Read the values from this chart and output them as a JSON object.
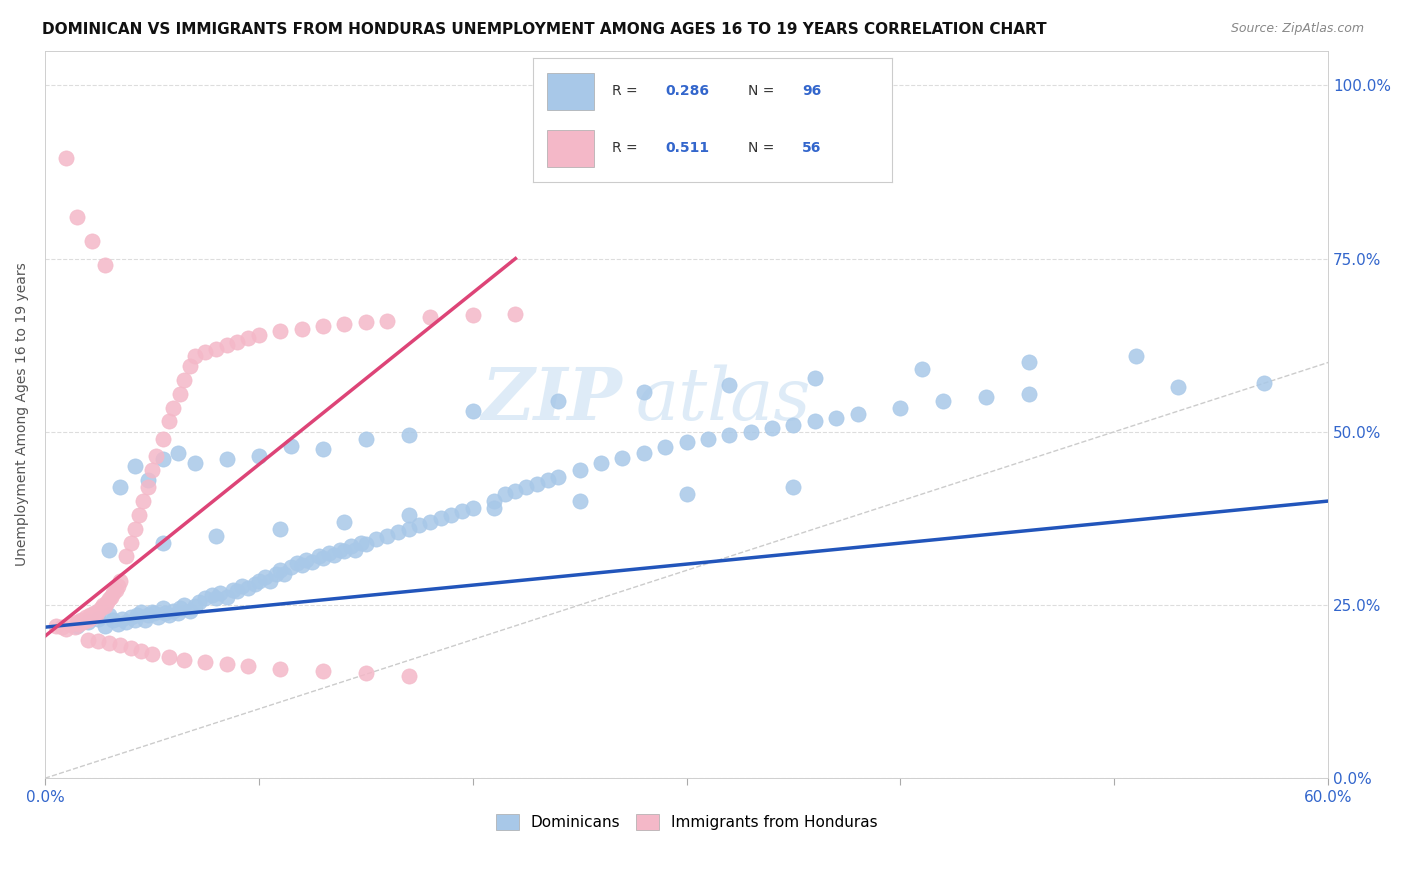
{
  "title": "DOMINICAN VS IMMIGRANTS FROM HONDURAS UNEMPLOYMENT AMONG AGES 16 TO 19 YEARS CORRELATION CHART",
  "source": "Source: ZipAtlas.com",
  "ylabel": "Unemployment Among Ages 16 to 19 years",
  "right_yticklabels": [
    "0.0%",
    "25.0%",
    "50.0%",
    "75.0%",
    "100.0%"
  ],
  "right_ytick_vals": [
    0.0,
    0.25,
    0.5,
    0.75,
    1.0
  ],
  "xmin": 0.0,
  "xmax": 0.6,
  "ymin": 0.18,
  "ymax": 1.05,
  "blue_color": "#a8c8e8",
  "pink_color": "#f4b8c8",
  "blue_line_color": "#2255bb",
  "pink_line_color": "#dd4477",
  "ref_line_color": "#cccccc",
  "legend_R_blue": "0.286",
  "legend_N_blue": "96",
  "legend_R_pink": "0.511",
  "legend_N_pink": "56",
  "legend_label_blue": "Dominicans",
  "legend_label_pink": "Immigrants from Honduras",
  "watermark_zip": "ZIP",
  "watermark_atlas": "atlas",
  "title_fontsize": 11,
  "source_fontsize": 9,
  "blue_scatter_x": [
    0.015,
    0.02,
    0.025,
    0.028,
    0.03,
    0.032,
    0.034,
    0.036,
    0.038,
    0.04,
    0.042,
    0.043,
    0.045,
    0.047,
    0.048,
    0.05,
    0.051,
    0.053,
    0.055,
    0.056,
    0.058,
    0.06,
    0.062,
    0.063,
    0.065,
    0.068,
    0.07,
    0.072,
    0.075,
    0.078,
    0.08,
    0.082,
    0.085,
    0.088,
    0.09,
    0.092,
    0.095,
    0.098,
    0.1,
    0.103,
    0.105,
    0.108,
    0.11,
    0.112,
    0.115,
    0.118,
    0.12,
    0.122,
    0.125,
    0.128,
    0.13,
    0.133,
    0.135,
    0.138,
    0.14,
    0.143,
    0.145,
    0.148,
    0.15,
    0.155,
    0.16,
    0.165,
    0.17,
    0.175,
    0.18,
    0.185,
    0.19,
    0.195,
    0.2,
    0.21,
    0.215,
    0.22,
    0.225,
    0.23,
    0.235,
    0.24,
    0.25,
    0.26,
    0.27,
    0.28,
    0.29,
    0.3,
    0.31,
    0.32,
    0.33,
    0.34,
    0.35,
    0.36,
    0.37,
    0.38,
    0.4,
    0.42,
    0.44,
    0.46,
    0.53,
    0.57
  ],
  "blue_scatter_y": [
    0.22,
    0.225,
    0.23,
    0.22,
    0.235,
    0.228,
    0.222,
    0.23,
    0.225,
    0.232,
    0.228,
    0.235,
    0.24,
    0.228,
    0.235,
    0.24,
    0.238,
    0.232,
    0.245,
    0.238,
    0.235,
    0.242,
    0.238,
    0.245,
    0.25,
    0.242,
    0.248,
    0.255,
    0.26,
    0.265,
    0.26,
    0.268,
    0.262,
    0.272,
    0.27,
    0.278,
    0.275,
    0.28,
    0.285,
    0.29,
    0.285,
    0.295,
    0.3,
    0.295,
    0.305,
    0.31,
    0.308,
    0.315,
    0.312,
    0.32,
    0.318,
    0.325,
    0.322,
    0.33,
    0.328,
    0.335,
    0.33,
    0.34,
    0.338,
    0.345,
    0.35,
    0.355,
    0.36,
    0.365,
    0.37,
    0.375,
    0.38,
    0.385,
    0.39,
    0.4,
    0.41,
    0.415,
    0.42,
    0.425,
    0.43,
    0.435,
    0.445,
    0.455,
    0.462,
    0.47,
    0.478,
    0.485,
    0.49,
    0.495,
    0.5,
    0.505,
    0.51,
    0.515,
    0.52,
    0.525,
    0.535,
    0.545,
    0.55,
    0.555,
    0.565,
    0.57
  ],
  "blue_scatter_extra_x": [
    0.035,
    0.042,
    0.048,
    0.055,
    0.062,
    0.07,
    0.085,
    0.1,
    0.115,
    0.13,
    0.15,
    0.17,
    0.2,
    0.24,
    0.28,
    0.32,
    0.36,
    0.41,
    0.46,
    0.51,
    0.03,
    0.055,
    0.08,
    0.11,
    0.14,
    0.17,
    0.21,
    0.25,
    0.3,
    0.35
  ],
  "blue_scatter_extra_y": [
    0.42,
    0.45,
    0.43,
    0.46,
    0.47,
    0.455,
    0.46,
    0.465,
    0.48,
    0.475,
    0.49,
    0.495,
    0.53,
    0.545,
    0.558,
    0.568,
    0.578,
    0.59,
    0.6,
    0.61,
    0.33,
    0.34,
    0.35,
    0.36,
    0.37,
    0.38,
    0.39,
    0.4,
    0.41,
    0.42
  ],
  "pink_scatter_x": [
    0.005,
    0.008,
    0.01,
    0.012,
    0.014,
    0.015,
    0.016,
    0.017,
    0.018,
    0.019,
    0.02,
    0.021,
    0.022,
    0.023,
    0.024,
    0.025,
    0.026,
    0.027,
    0.028,
    0.029,
    0.03,
    0.031,
    0.032,
    0.033,
    0.034,
    0.035,
    0.038,
    0.04,
    0.042,
    0.044,
    0.046,
    0.048,
    0.05,
    0.052,
    0.055,
    0.058,
    0.06,
    0.063,
    0.065,
    0.068,
    0.07,
    0.075,
    0.08,
    0.085,
    0.09,
    0.095,
    0.1,
    0.11,
    0.12,
    0.13,
    0.14,
    0.15,
    0.16,
    0.18,
    0.2,
    0.22
  ],
  "pink_scatter_y": [
    0.22,
    0.218,
    0.215,
    0.222,
    0.218,
    0.225,
    0.222,
    0.228,
    0.225,
    0.232,
    0.228,
    0.235,
    0.232,
    0.238,
    0.235,
    0.242,
    0.245,
    0.25,
    0.248,
    0.255,
    0.258,
    0.262,
    0.268,
    0.272,
    0.278,
    0.285,
    0.32,
    0.34,
    0.36,
    0.38,
    0.4,
    0.42,
    0.445,
    0.465,
    0.49,
    0.515,
    0.535,
    0.555,
    0.575,
    0.595,
    0.61,
    0.615,
    0.62,
    0.625,
    0.63,
    0.635,
    0.64,
    0.645,
    0.648,
    0.652,
    0.655,
    0.658,
    0.66,
    0.665,
    0.668,
    0.67
  ],
  "pink_extra_x": [
    0.02,
    0.025,
    0.03,
    0.035,
    0.04,
    0.045,
    0.05,
    0.058,
    0.065,
    0.075,
    0.085,
    0.095,
    0.11,
    0.13,
    0.15,
    0.17,
    0.01,
    0.015,
    0.022,
    0.028
  ],
  "pink_extra_y": [
    0.2,
    0.198,
    0.195,
    0.192,
    0.188,
    0.184,
    0.18,
    0.175,
    0.17,
    0.168,
    0.165,
    0.162,
    0.158,
    0.155,
    0.152,
    0.148,
    0.895,
    0.81,
    0.775,
    0.74
  ],
  "blue_trend_x": [
    0.0,
    0.6
  ],
  "blue_trend_y": [
    0.218,
    0.4
  ],
  "pink_trend_x": [
    0.0,
    0.22
  ],
  "pink_trend_y": [
    0.205,
    0.75
  ],
  "ref_line_x": [
    0.0,
    1.05
  ],
  "ref_line_y": [
    0.0,
    1.05
  ]
}
